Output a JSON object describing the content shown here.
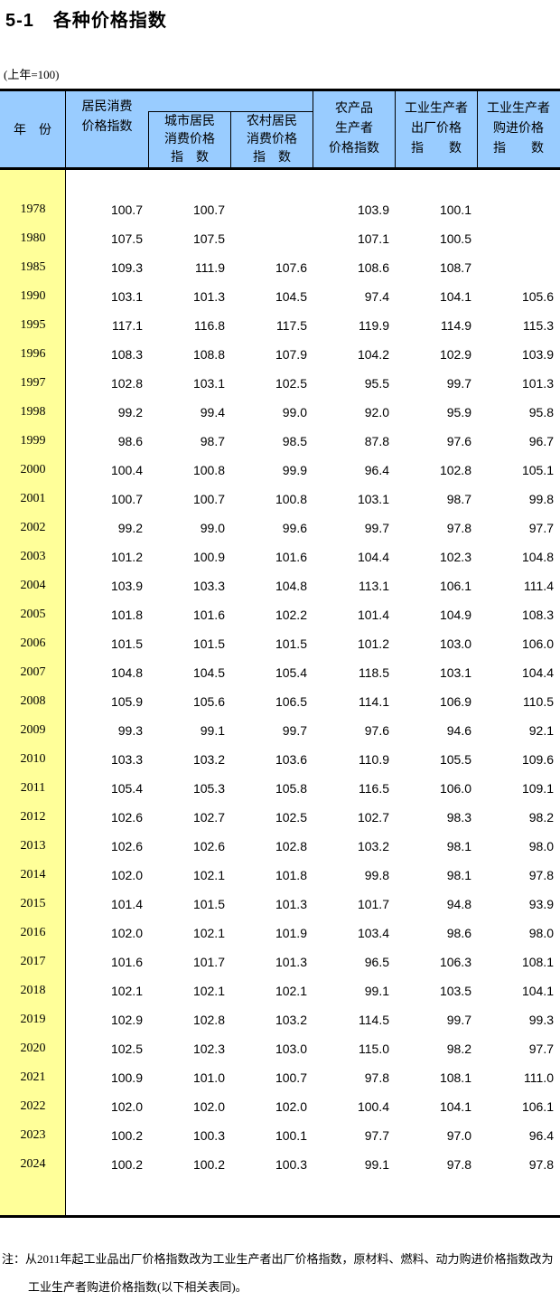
{
  "title": "5-1　各种价格指数",
  "unit_note": "(上年=100)",
  "colors": {
    "header_bg": "#99CCFF",
    "year_column_bg": "#FFFF99",
    "border": "#000000"
  },
  "table": {
    "header": {
      "year": "年　份",
      "cpi_lines": [
        "居民消费",
        "价格指数"
      ],
      "urban_lines": [
        "城市居民",
        "消费价格",
        "指　数"
      ],
      "rural_lines": [
        "农村居民",
        "消费价格",
        "指　数"
      ],
      "agri_lines": [
        "农产品",
        "生产者",
        "价格指数"
      ],
      "ppi_out_lines": [
        "工业生产者",
        "出厂价格",
        "指　　数"
      ],
      "ppi_in_lines": [
        "工业生产者",
        "购进价格",
        "指　　数"
      ]
    },
    "rows": [
      {
        "year": "1978",
        "values": [
          "100.7",
          "100.7",
          "",
          "103.9",
          "100.1",
          ""
        ]
      },
      {
        "year": "1980",
        "values": [
          "107.5",
          "107.5",
          "",
          "107.1",
          "100.5",
          ""
        ]
      },
      {
        "year": "1985",
        "values": [
          "109.3",
          "111.9",
          "107.6",
          "108.6",
          "108.7",
          ""
        ]
      },
      {
        "year": "1990",
        "values": [
          "103.1",
          "101.3",
          "104.5",
          "97.4",
          "104.1",
          "105.6"
        ]
      },
      {
        "year": "1995",
        "values": [
          "117.1",
          "116.8",
          "117.5",
          "119.9",
          "114.9",
          "115.3"
        ]
      },
      {
        "year": "1996",
        "values": [
          "108.3",
          "108.8",
          "107.9",
          "104.2",
          "102.9",
          "103.9"
        ]
      },
      {
        "year": "1997",
        "values": [
          "102.8",
          "103.1",
          "102.5",
          "95.5",
          "99.7",
          "101.3"
        ]
      },
      {
        "year": "1998",
        "values": [
          "99.2",
          "99.4",
          "99.0",
          "92.0",
          "95.9",
          "95.8"
        ]
      },
      {
        "year": "1999",
        "values": [
          "98.6",
          "98.7",
          "98.5",
          "87.8",
          "97.6",
          "96.7"
        ]
      },
      {
        "year": "2000",
        "values": [
          "100.4",
          "100.8",
          "99.9",
          "96.4",
          "102.8",
          "105.1"
        ]
      },
      {
        "year": "2001",
        "values": [
          "100.7",
          "100.7",
          "100.8",
          "103.1",
          "98.7",
          "99.8"
        ]
      },
      {
        "year": "2002",
        "values": [
          "99.2",
          "99.0",
          "99.6",
          "99.7",
          "97.8",
          "97.7"
        ]
      },
      {
        "year": "2003",
        "values": [
          "101.2",
          "100.9",
          "101.6",
          "104.4",
          "102.3",
          "104.8"
        ]
      },
      {
        "year": "2004",
        "values": [
          "103.9",
          "103.3",
          "104.8",
          "113.1",
          "106.1",
          "111.4"
        ]
      },
      {
        "year": "2005",
        "values": [
          "101.8",
          "101.6",
          "102.2",
          "101.4",
          "104.9",
          "108.3"
        ]
      },
      {
        "year": "2006",
        "values": [
          "101.5",
          "101.5",
          "101.5",
          "101.2",
          "103.0",
          "106.0"
        ]
      },
      {
        "year": "2007",
        "values": [
          "104.8",
          "104.5",
          "105.4",
          "118.5",
          "103.1",
          "104.4"
        ]
      },
      {
        "year": "2008",
        "values": [
          "105.9",
          "105.6",
          "106.5",
          "114.1",
          "106.9",
          "110.5"
        ]
      },
      {
        "year": "2009",
        "values": [
          "99.3",
          "99.1",
          "99.7",
          "97.6",
          "94.6",
          "92.1"
        ]
      },
      {
        "year": "2010",
        "values": [
          "103.3",
          "103.2",
          "103.6",
          "110.9",
          "105.5",
          "109.6"
        ]
      },
      {
        "year": "2011",
        "values": [
          "105.4",
          "105.3",
          "105.8",
          "116.5",
          "106.0",
          "109.1"
        ]
      },
      {
        "year": "2012",
        "values": [
          "102.6",
          "102.7",
          "102.5",
          "102.7",
          "98.3",
          "98.2"
        ]
      },
      {
        "year": "2013",
        "values": [
          "102.6",
          "102.6",
          "102.8",
          "103.2",
          "98.1",
          "98.0"
        ]
      },
      {
        "year": "2014",
        "values": [
          "102.0",
          "102.1",
          "101.8",
          "99.8",
          "98.1",
          "97.8"
        ]
      },
      {
        "year": "2015",
        "values": [
          "101.4",
          "101.5",
          "101.3",
          "101.7",
          "94.8",
          "93.9"
        ]
      },
      {
        "year": "2016",
        "values": [
          "102.0",
          "102.1",
          "101.9",
          "103.4",
          "98.6",
          "98.0"
        ]
      },
      {
        "year": "2017",
        "values": [
          "101.6",
          "101.7",
          "101.3",
          "96.5",
          "106.3",
          "108.1"
        ]
      },
      {
        "year": "2018",
        "values": [
          "102.1",
          "102.1",
          "102.1",
          "99.1",
          "103.5",
          "104.1"
        ]
      },
      {
        "year": "2019",
        "values": [
          "102.9",
          "102.8",
          "103.2",
          "114.5",
          "99.7",
          "99.3"
        ]
      },
      {
        "year": "2020",
        "values": [
          "102.5",
          "102.3",
          "103.0",
          "115.0",
          "98.2",
          "97.7"
        ]
      },
      {
        "year": "2021",
        "values": [
          "100.9",
          "101.0",
          "100.7",
          "97.8",
          "108.1",
          "111.0"
        ]
      },
      {
        "year": "2022",
        "values": [
          "102.0",
          "102.0",
          "102.0",
          "100.4",
          "104.1",
          "106.1"
        ]
      },
      {
        "year": "2023",
        "values": [
          "100.2",
          "100.3",
          "100.1",
          "97.7",
          "97.0",
          "96.4"
        ]
      },
      {
        "year": "2024",
        "values": [
          "100.2",
          "100.2",
          "100.3",
          "99.1",
          "97.8",
          "97.8"
        ]
      }
    ]
  },
  "note": {
    "label": "注：",
    "line1": "从2011年起工业品出厂价格指数改为工业生产者出厂价格指数，原材料、燃料、动力购进价格指数改为",
    "line2": "工业生产者购进价格指数(以下相关表同)。"
  }
}
